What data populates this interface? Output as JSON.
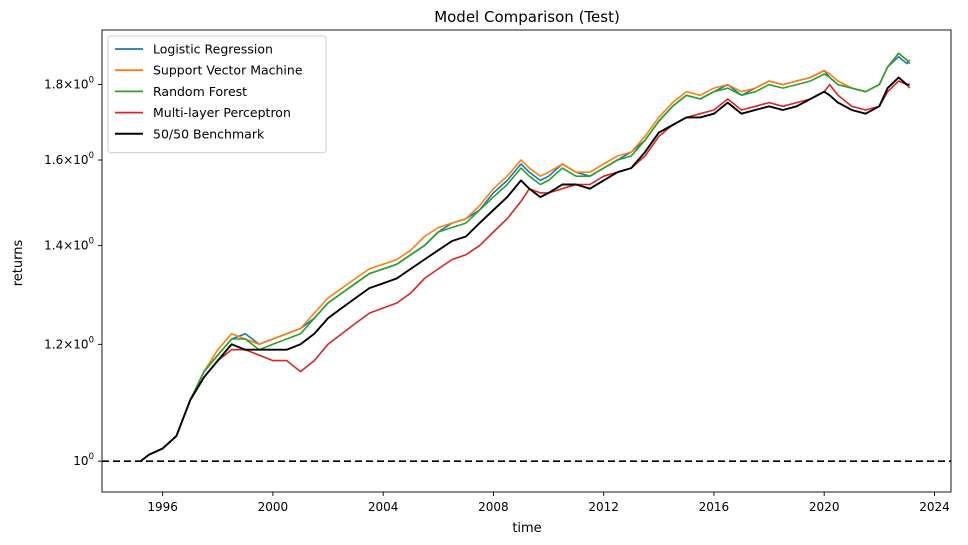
{
  "chart_data": {
    "type": "line",
    "title": "Model Comparison (Test)",
    "xlabel": "time",
    "ylabel": "returns",
    "yscale": "log",
    "xlim": [
      1993.8,
      2024.6
    ],
    "ylim": [
      0.953,
      1.96
    ],
    "x_ticks": [
      1996,
      2000,
      2004,
      2008,
      2012,
      2016,
      2020,
      2024
    ],
    "x_tick_labels": [
      "1996",
      "2000",
      "2004",
      "2008",
      "2012",
      "2016",
      "2020",
      "2024"
    ],
    "y_ticks": [
      {
        "value": 1.0,
        "mantissa": "10",
        "sup": "0"
      },
      {
        "value": 1.2,
        "mantissa": "1.2×10",
        "sup": "0"
      },
      {
        "value": 1.4,
        "mantissa": "1.4×10",
        "sup": "0"
      },
      {
        "value": 1.6,
        "mantissa": "1.6×10",
        "sup": "0"
      },
      {
        "value": 1.8,
        "mantissa": "1.8×10",
        "sup": "0"
      }
    ],
    "grid": false,
    "legend_position": "top-left",
    "reference_line": {
      "y": 1.0,
      "style": "dashed",
      "color": "#000000"
    },
    "series": [
      {
        "name": "Logistic Regression",
        "color": "#1f77b4",
        "x": [
          1995.2,
          1995.5,
          1996,
          1996.5,
          1997,
          1997.5,
          1998,
          1998.5,
          1999,
          1999.5,
          2000,
          2000.5,
          2001,
          2001.5,
          2002,
          2002.5,
          2003,
          2003.5,
          2004,
          2004.5,
          2005,
          2005.5,
          2006,
          2006.5,
          2007,
          2007.5,
          2008,
          2008.5,
          2009,
          2009.3,
          2009.7,
          2010,
          2010.5,
          2011,
          2011.5,
          2012,
          2012.5,
          2013,
          2013.5,
          2014,
          2014.5,
          2015,
          2015.5,
          2016,
          2016.5,
          2017,
          2017.5,
          2018,
          2018.5,
          2019,
          2019.5,
          2020,
          2020.2,
          2020.5,
          2021,
          2021.5,
          2022,
          2022.3,
          2022.7,
          2023,
          2023.1
        ],
        "values": [
          1.0,
          1.01,
          1.02,
          1.04,
          1.1,
          1.15,
          1.18,
          1.21,
          1.22,
          1.2,
          1.21,
          1.22,
          1.23,
          1.25,
          1.28,
          1.3,
          1.32,
          1.34,
          1.35,
          1.36,
          1.38,
          1.4,
          1.43,
          1.45,
          1.46,
          1.48,
          1.52,
          1.55,
          1.59,
          1.57,
          1.55,
          1.56,
          1.59,
          1.57,
          1.56,
          1.58,
          1.6,
          1.62,
          1.65,
          1.7,
          1.74,
          1.77,
          1.76,
          1.78,
          1.8,
          1.77,
          1.79,
          1.81,
          1.8,
          1.81,
          1.82,
          1.84,
          1.82,
          1.8,
          1.79,
          1.78,
          1.8,
          1.85,
          1.88,
          1.86,
          1.87
        ]
      },
      {
        "name": "Support Vector Machine",
        "color": "#ff7f0e",
        "x": [
          1995.2,
          1995.5,
          1996,
          1996.5,
          1997,
          1997.5,
          1998,
          1998.5,
          1999,
          1999.5,
          2000,
          2000.5,
          2001,
          2001.5,
          2002,
          2002.5,
          2003,
          2003.5,
          2004,
          2004.5,
          2005,
          2005.5,
          2006,
          2006.5,
          2007,
          2007.5,
          2008,
          2008.5,
          2009,
          2009.3,
          2009.7,
          2010,
          2010.5,
          2011,
          2011.5,
          2012,
          2012.5,
          2013,
          2013.5,
          2014,
          2014.5,
          2015,
          2015.5,
          2016,
          2016.5,
          2017,
          2017.5,
          2018,
          2018.5,
          2019,
          2019.5,
          2020,
          2020.2,
          2020.5,
          2021,
          2021.5,
          2022,
          2022.3,
          2022.7,
          2023,
          2023.1
        ],
        "values": [
          1.0,
          1.01,
          1.02,
          1.04,
          1.1,
          1.15,
          1.19,
          1.22,
          1.21,
          1.2,
          1.21,
          1.22,
          1.23,
          1.26,
          1.29,
          1.31,
          1.33,
          1.35,
          1.36,
          1.37,
          1.39,
          1.42,
          1.44,
          1.45,
          1.46,
          1.49,
          1.53,
          1.56,
          1.6,
          1.58,
          1.56,
          1.57,
          1.59,
          1.57,
          1.57,
          1.59,
          1.61,
          1.62,
          1.66,
          1.71,
          1.75,
          1.78,
          1.77,
          1.79,
          1.8,
          1.78,
          1.79,
          1.81,
          1.8,
          1.81,
          1.82,
          1.84,
          1.83,
          1.81,
          1.79,
          1.78,
          1.8,
          1.85,
          1.89,
          1.87,
          1.86
        ]
      },
      {
        "name": "Random Forest",
        "color": "#2ca02c",
        "x": [
          1995.2,
          1995.5,
          1996,
          1996.5,
          1997,
          1997.5,
          1998,
          1998.5,
          1999,
          1999.5,
          2000,
          2000.5,
          2001,
          2001.5,
          2002,
          2002.5,
          2003,
          2003.5,
          2004,
          2004.5,
          2005,
          2005.5,
          2006,
          2006.5,
          2007,
          2007.5,
          2008,
          2008.5,
          2009,
          2009.3,
          2009.7,
          2010,
          2010.5,
          2011,
          2011.5,
          2012,
          2012.5,
          2013,
          2013.5,
          2014,
          2014.5,
          2015,
          2015.5,
          2016,
          2016.5,
          2017,
          2017.5,
          2018,
          2018.5,
          2019,
          2019.5,
          2020,
          2020.2,
          2020.5,
          2021,
          2021.5,
          2022,
          2022.3,
          2022.7,
          2023,
          2023.1
        ],
        "values": [
          1.0,
          1.01,
          1.02,
          1.04,
          1.1,
          1.15,
          1.18,
          1.21,
          1.21,
          1.19,
          1.2,
          1.21,
          1.22,
          1.25,
          1.28,
          1.3,
          1.32,
          1.34,
          1.35,
          1.36,
          1.38,
          1.4,
          1.43,
          1.44,
          1.45,
          1.48,
          1.51,
          1.54,
          1.58,
          1.56,
          1.54,
          1.55,
          1.58,
          1.56,
          1.56,
          1.58,
          1.6,
          1.61,
          1.65,
          1.7,
          1.74,
          1.77,
          1.76,
          1.78,
          1.79,
          1.77,
          1.78,
          1.8,
          1.79,
          1.8,
          1.81,
          1.83,
          1.82,
          1.8,
          1.79,
          1.78,
          1.8,
          1.85,
          1.89,
          1.87,
          1.86
        ]
      },
      {
        "name": "Multi-layer Perceptron",
        "color": "#d62728",
        "x": [
          1995.2,
          1995.5,
          1996,
          1996.5,
          1997,
          1997.5,
          1998,
          1998.5,
          1999,
          1999.5,
          2000,
          2000.5,
          2001,
          2001.5,
          2002,
          2002.5,
          2003,
          2003.5,
          2004,
          2004.5,
          2005,
          2005.5,
          2006,
          2006.5,
          2007,
          2007.5,
          2008,
          2008.5,
          2009,
          2009.3,
          2009.7,
          2010,
          2010.5,
          2011,
          2011.5,
          2012,
          2012.5,
          2013,
          2013.5,
          2014,
          2014.5,
          2015,
          2015.5,
          2016,
          2016.5,
          2017,
          2017.5,
          2018,
          2018.5,
          2019,
          2019.5,
          2020,
          2020.2,
          2020.5,
          2021,
          2021.5,
          2022,
          2022.3,
          2022.7,
          2023,
          2023.1
        ],
        "values": [
          1.0,
          1.01,
          1.02,
          1.04,
          1.1,
          1.14,
          1.17,
          1.19,
          1.19,
          1.18,
          1.17,
          1.17,
          1.15,
          1.17,
          1.2,
          1.22,
          1.24,
          1.26,
          1.27,
          1.28,
          1.3,
          1.33,
          1.35,
          1.37,
          1.38,
          1.4,
          1.43,
          1.46,
          1.5,
          1.53,
          1.52,
          1.52,
          1.53,
          1.54,
          1.54,
          1.56,
          1.57,
          1.58,
          1.61,
          1.66,
          1.69,
          1.71,
          1.72,
          1.73,
          1.76,
          1.73,
          1.74,
          1.75,
          1.74,
          1.75,
          1.76,
          1.78,
          1.8,
          1.77,
          1.74,
          1.73,
          1.74,
          1.78,
          1.81,
          1.8,
          1.79
        ]
      },
      {
        "name": "50/50 Benchmark",
        "color": "#000000",
        "x": [
          1995.2,
          1995.5,
          1996,
          1996.5,
          1997,
          1997.5,
          1998,
          1998.5,
          1999,
          1999.5,
          2000,
          2000.5,
          2001,
          2001.5,
          2002,
          2002.5,
          2003,
          2003.5,
          2004,
          2004.5,
          2005,
          2005.5,
          2006,
          2006.5,
          2007,
          2007.5,
          2008,
          2008.5,
          2009,
          2009.3,
          2009.7,
          2010,
          2010.5,
          2011,
          2011.5,
          2012,
          2012.5,
          2013,
          2013.5,
          2014,
          2014.5,
          2015,
          2015.5,
          2016,
          2016.5,
          2017,
          2017.5,
          2018,
          2018.5,
          2019,
          2019.5,
          2020,
          2020.2,
          2020.5,
          2021,
          2021.5,
          2022,
          2022.3,
          2022.7,
          2023,
          2023.1
        ],
        "values": [
          1.0,
          1.01,
          1.02,
          1.04,
          1.1,
          1.14,
          1.17,
          1.2,
          1.19,
          1.19,
          1.19,
          1.19,
          1.2,
          1.22,
          1.25,
          1.27,
          1.29,
          1.31,
          1.32,
          1.33,
          1.35,
          1.37,
          1.39,
          1.41,
          1.42,
          1.45,
          1.48,
          1.51,
          1.55,
          1.53,
          1.51,
          1.52,
          1.54,
          1.54,
          1.53,
          1.55,
          1.57,
          1.58,
          1.62,
          1.67,
          1.69,
          1.71,
          1.71,
          1.72,
          1.75,
          1.72,
          1.73,
          1.74,
          1.73,
          1.74,
          1.76,
          1.78,
          1.77,
          1.75,
          1.73,
          1.72,
          1.74,
          1.79,
          1.82,
          1.8,
          1.8
        ]
      }
    ]
  }
}
